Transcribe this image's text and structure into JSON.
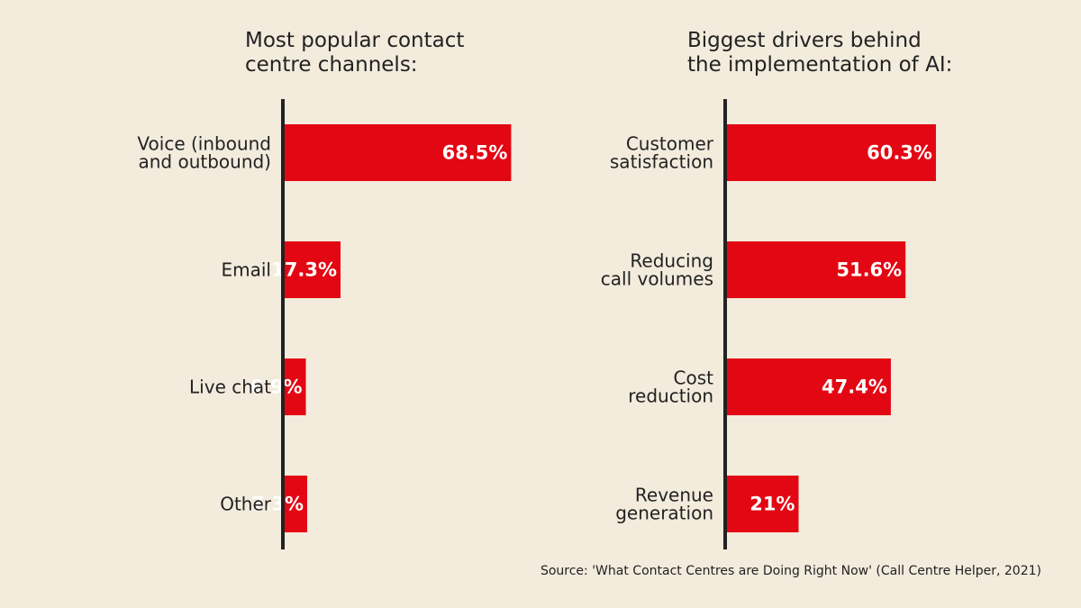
{
  "colors": {
    "background": "#f3ebdc",
    "bar": "#e30613",
    "axis": "#222222",
    "text": "#222222",
    "bar_label": "#ffffff"
  },
  "source": "Source: 'What Contact Centres are Doing Right Now' (Call Centre Helper, 2021)",
  "chart_data": [
    {
      "type": "bar",
      "orientation": "horizontal",
      "title": "Most popular contact centre channels:",
      "title_lines": [
        "Most popular contact",
        "centre channels:"
      ],
      "categories": [
        "Voice (inbound and outbound)",
        "Email",
        "Live chat",
        "Other"
      ],
      "category_lines": [
        [
          "Voice (inbound",
          "and outbound)"
        ],
        [
          "Email"
        ],
        [
          "Live chat"
        ],
        [
          "Other"
        ]
      ],
      "values": [
        68.5,
        17.3,
        6.9,
        7.3
      ],
      "data_labels": [
        "68.5%",
        "17.3%",
        "6.9%",
        "7.3%"
      ],
      "unit": "%",
      "xlim": [
        0,
        100
      ],
      "xlabel": "",
      "ylabel": "",
      "grid": false
    },
    {
      "type": "bar",
      "orientation": "horizontal",
      "title": "Biggest drivers behind the implementation of AI:",
      "title_lines": [
        "Biggest drivers behind",
        "the implementation of AI:"
      ],
      "categories": [
        "Customer satisfaction",
        "Reducing call volumes",
        "Cost reduction",
        "Revenue generation"
      ],
      "category_lines": [
        [
          "Customer",
          "satisfaction"
        ],
        [
          "Reducing",
          "call volumes"
        ],
        [
          "Cost",
          "reduction"
        ],
        [
          "Revenue",
          "generation"
        ]
      ],
      "values": [
        60.3,
        51.6,
        47.4,
        21
      ],
      "data_labels": [
        "60.3%",
        "51.6%",
        "47.4%",
        "21%"
      ],
      "unit": "%",
      "xlim": [
        0,
        100
      ],
      "xlabel": "",
      "ylabel": "",
      "grid": false
    }
  ]
}
